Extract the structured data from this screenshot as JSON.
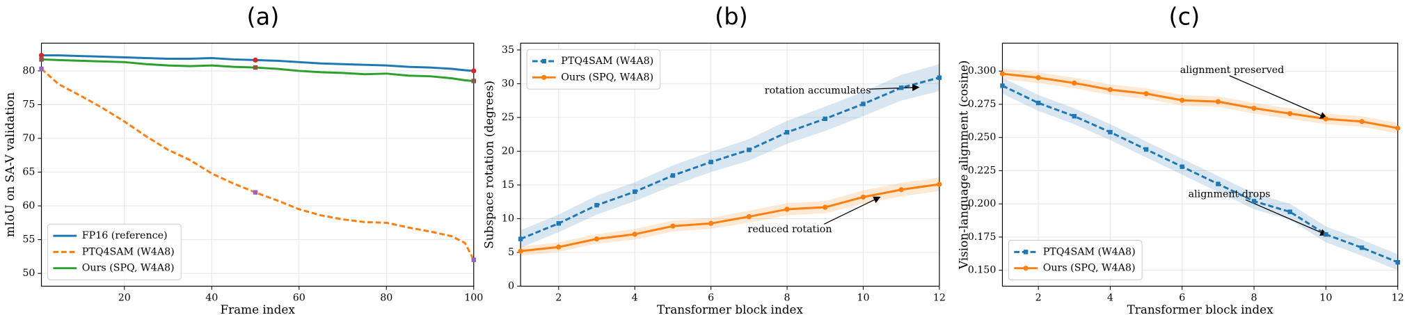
{
  "chart_data": [
    {
      "type": "line",
      "title": "(a)",
      "xlabel": "Frame index",
      "ylabel": "mIoU on SA-V validation",
      "x": [
        1,
        5,
        10,
        15,
        20,
        25,
        30,
        35,
        40,
        45,
        50,
        55,
        60,
        65,
        70,
        75,
        80,
        85,
        90,
        95,
        98,
        100
      ],
      "series": [
        {
          "name": "FP16 (reference)",
          "color": "#1f77b4",
          "linestyle": "solid",
          "highlight_color": "#d62728",
          "values": [
            82.3,
            82.3,
            82.2,
            82.1,
            82.0,
            81.9,
            81.8,
            81.8,
            81.9,
            81.7,
            81.6,
            81.5,
            81.3,
            81.1,
            81.0,
            80.9,
            80.8,
            80.6,
            80.5,
            80.3,
            80.1,
            80.0
          ]
        },
        {
          "name": "PTQ4SAM (W4A8)",
          "color": "#ff7f0e",
          "linestyle": "dashed",
          "highlight_color": "#9467bd",
          "values": [
            80.3,
            78.0,
            76.3,
            74.5,
            72.5,
            70.3,
            68.3,
            66.8,
            64.8,
            63.3,
            62.0,
            60.8,
            59.5,
            58.6,
            58.0,
            57.6,
            57.5,
            56.8,
            56.2,
            55.5,
            54.5,
            52.0
          ]
        },
        {
          "name": "Ours (SPQ, W4A8)",
          "color": "#2ca02c",
          "linestyle": "solid",
          "highlight_color": "#8c564b",
          "values": [
            81.7,
            81.6,
            81.5,
            81.4,
            81.3,
            81.0,
            80.8,
            80.7,
            80.8,
            80.6,
            80.5,
            80.3,
            80.0,
            79.8,
            79.7,
            79.5,
            79.6,
            79.3,
            79.2,
            78.9,
            78.6,
            78.5
          ]
        }
      ],
      "highlight_x": [
        1,
        50,
        100
      ],
      "xlim": [
        1,
        100
      ],
      "xticks": [
        20,
        40,
        60,
        80,
        100
      ],
      "ylim": [
        48.1,
        84.1
      ],
      "yticks": [
        50,
        55,
        60,
        65,
        70,
        75,
        80
      ],
      "grid": true,
      "legend": "lower left"
    },
    {
      "type": "line",
      "title": "(b)",
      "xlabel": "Transformer block index",
      "ylabel": "Subspace rotation (degrees)",
      "x": [
        1,
        2,
        3,
        4,
        5,
        6,
        7,
        8,
        9,
        10,
        11,
        12
      ],
      "series": [
        {
          "name": "PTQ4SAM (W4A8)",
          "color": "#1f77b4",
          "linestyle": "dashed",
          "marker": "square",
          "values": [
            7.0,
            9.3,
            12.0,
            14.0,
            16.4,
            18.4,
            20.2,
            22.8,
            24.8,
            27.0,
            29.4,
            30.9
          ],
          "errors": [
            1.3,
            1.3,
            1.4,
            1.4,
            1.5,
            1.5,
            1.6,
            1.7,
            1.8,
            1.8,
            1.9,
            2.0
          ]
        },
        {
          "name": "Ours (SPQ, W4A8)",
          "color": "#ff7f0e",
          "linestyle": "solid",
          "marker": "circle",
          "values": [
            5.2,
            5.8,
            7.0,
            7.7,
            8.9,
            9.3,
            10.3,
            11.4,
            11.7,
            13.2,
            14.3,
            15.1
          ],
          "errors": [
            0.7,
            0.7,
            0.7,
            0.8,
            0.8,
            0.8,
            0.9,
            0.9,
            0.9,
            1.0,
            1.0,
            1.0
          ]
        }
      ],
      "annotations": [
        "rotation accumulates",
        "reduced rotation"
      ],
      "xlim": [
        1,
        12
      ],
      "xticks": [
        2,
        4,
        6,
        8,
        10,
        12
      ],
      "ylim": [
        0,
        36
      ],
      "yticks": [
        0,
        5,
        10,
        15,
        20,
        25,
        30,
        35
      ],
      "grid": true,
      "legend": "upper left"
    },
    {
      "type": "line",
      "title": "(c)",
      "xlabel": "Transformer block index",
      "ylabel": "Vision-language alignment (cosine)",
      "x": [
        1,
        2,
        3,
        4,
        5,
        6,
        7,
        8,
        9,
        10,
        11,
        12
      ],
      "series": [
        {
          "name": "PTQ4SAM (W4A8)",
          "color": "#1f77b4",
          "linestyle": "dashed",
          "marker": "square",
          "values": [
            0.289,
            0.276,
            0.266,
            0.254,
            0.241,
            0.228,
            0.215,
            0.202,
            0.194,
            0.177,
            0.167,
            0.156
          ],
          "errors": [
            0.006,
            0.006,
            0.006,
            0.006,
            0.006,
            0.006,
            0.006,
            0.006,
            0.006,
            0.006,
            0.006,
            0.006
          ]
        },
        {
          "name": "Ours (SPQ, W4A8)",
          "color": "#ff7f0e",
          "linestyle": "solid",
          "marker": "circle",
          "values": [
            0.298,
            0.295,
            0.291,
            0.286,
            0.283,
            0.278,
            0.277,
            0.272,
            0.268,
            0.264,
            0.262,
            0.257
          ],
          "errors": [
            0.004,
            0.004,
            0.004,
            0.004,
            0.004,
            0.004,
            0.004,
            0.004,
            0.004,
            0.004,
            0.004,
            0.004
          ]
        }
      ],
      "annotations": [
        "alignment preserved",
        "alignment drops"
      ],
      "xlim": [
        1,
        12
      ],
      "xticks": [
        2,
        4,
        6,
        8,
        10,
        12
      ],
      "ylim": [
        0.138,
        0.321
      ],
      "yticks": [
        {
          "value": 0.15,
          "label": "0.150"
        },
        {
          "value": 0.175,
          "label": "0.175"
        },
        {
          "value": 0.2,
          "label": "0.200"
        },
        {
          "value": 0.225,
          "label": "0.225"
        },
        {
          "value": 0.25,
          "label": "0.250"
        },
        {
          "value": 0.275,
          "label": "0.275"
        },
        {
          "value": 0.3,
          "label": "0.300"
        }
      ],
      "grid": true,
      "legend": "lower left"
    }
  ]
}
